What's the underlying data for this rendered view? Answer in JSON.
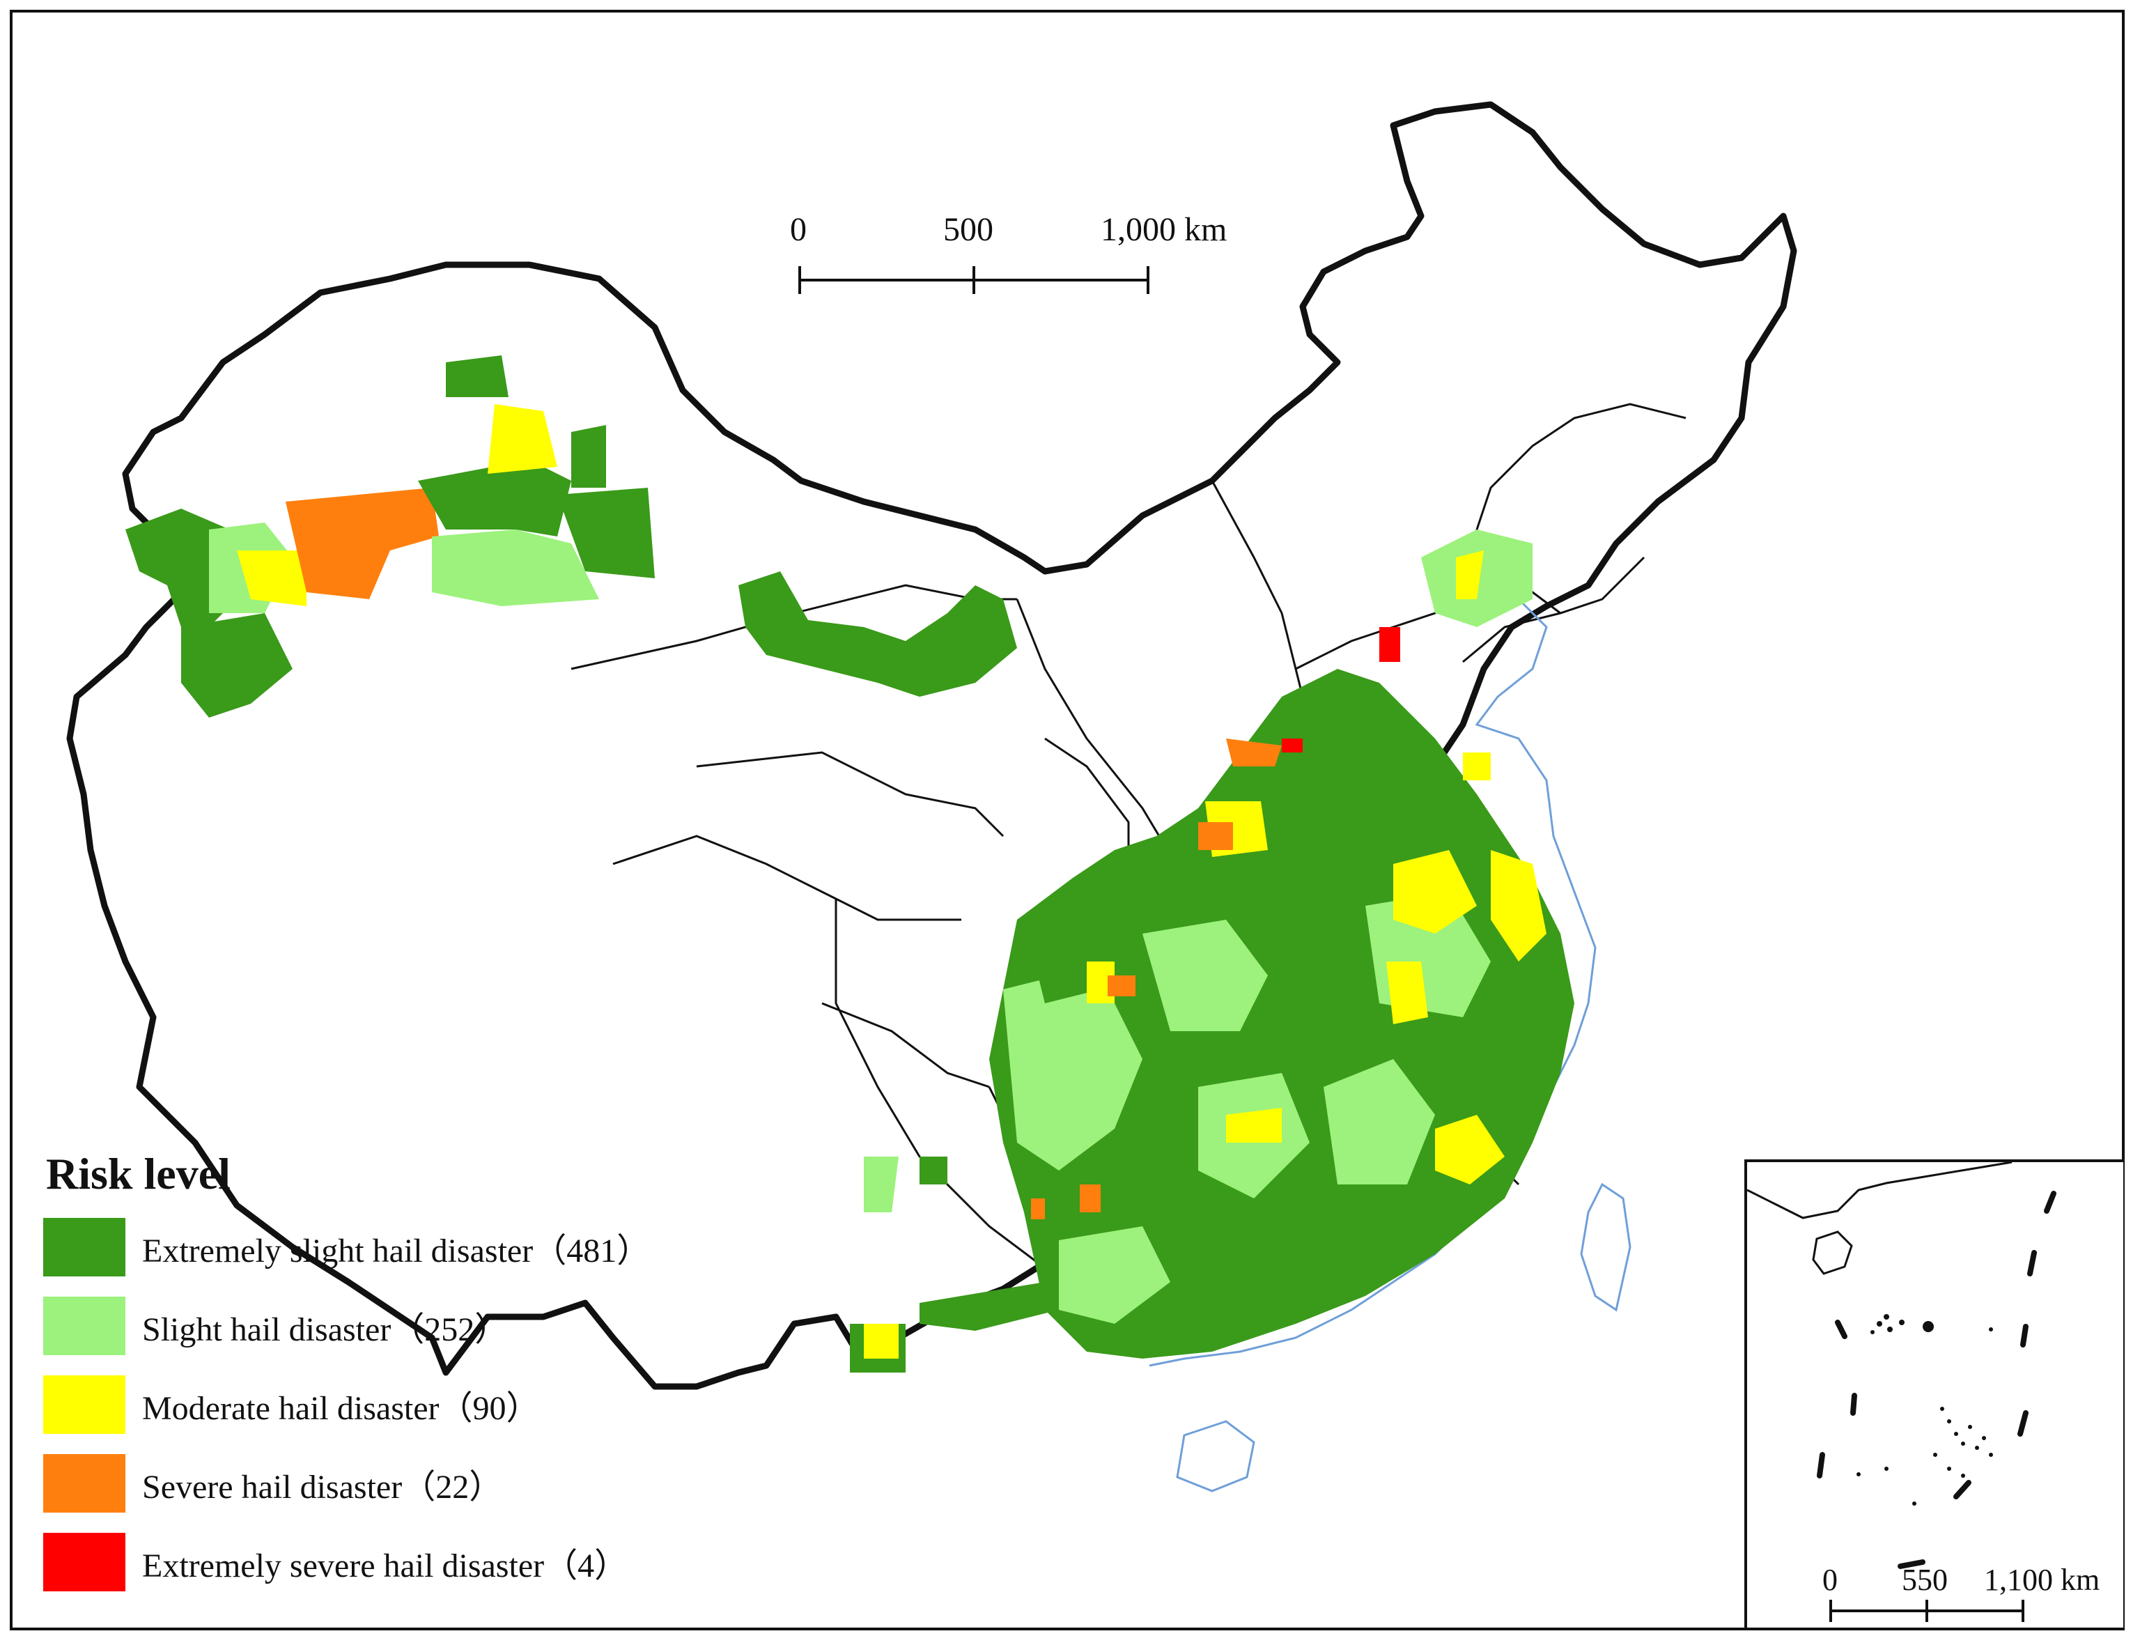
{
  "scale_bar": {
    "labels": [
      "0",
      "500",
      "1,000 km"
    ]
  },
  "inset_scale_bar": {
    "labels": [
      "0",
      "550",
      "1,100 km"
    ]
  },
  "legend": {
    "title": "Risk level",
    "items": [
      {
        "label": "Extremely slight hail disaster（481）",
        "color": "#3a9a1a"
      },
      {
        "label": "Slight hail disaster（252）",
        "color": "#9cf27c"
      },
      {
        "label": "Moderate hail disaster（90）",
        "color": "#ffff00"
      },
      {
        "label": "Severe hail disaster（22）",
        "color": "#ff7f0e"
      },
      {
        "label": "Extremely severe hail disaster（4）",
        "color": "#ff0000"
      }
    ]
  },
  "colors": {
    "boundary": "#111111",
    "coast": "#6f9fd8"
  }
}
